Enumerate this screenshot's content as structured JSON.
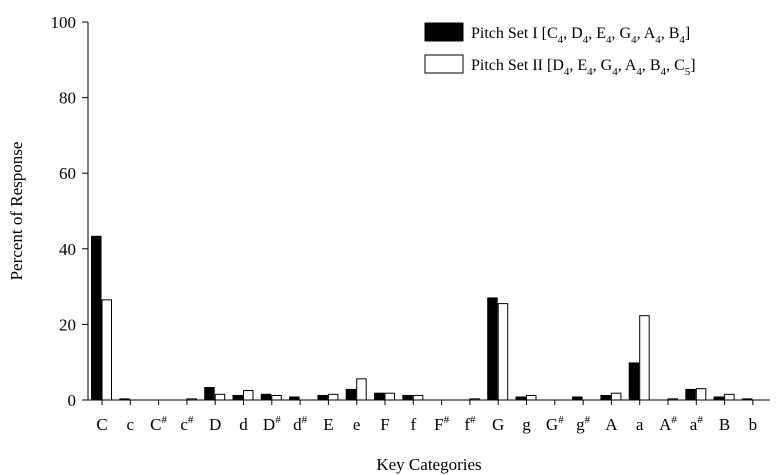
{
  "chart_data": {
    "type": "bar",
    "xlabel": "Key Categories",
    "ylabel": "Percent of Response",
    "ylim": [
      0,
      100
    ],
    "yticks": [
      0,
      20,
      40,
      60,
      80,
      100
    ],
    "grid": false,
    "legend_position": "top-right",
    "categories": [
      {
        "base": "C",
        "sup": ""
      },
      {
        "base": "c",
        "sup": ""
      },
      {
        "base": "C",
        "sup": "#"
      },
      {
        "base": "c",
        "sup": "#"
      },
      {
        "base": "D",
        "sup": ""
      },
      {
        "base": "d",
        "sup": ""
      },
      {
        "base": "D",
        "sup": "#"
      },
      {
        "base": "d",
        "sup": "#"
      },
      {
        "base": "E",
        "sup": ""
      },
      {
        "base": "e",
        "sup": ""
      },
      {
        "base": "F",
        "sup": ""
      },
      {
        "base": "f",
        "sup": ""
      },
      {
        "base": "F",
        "sup": "#"
      },
      {
        "base": "f",
        "sup": "#"
      },
      {
        "base": "G",
        "sup": ""
      },
      {
        "base": "g",
        "sup": ""
      },
      {
        "base": "G",
        "sup": "#"
      },
      {
        "base": "g",
        "sup": "#"
      },
      {
        "base": "A",
        "sup": ""
      },
      {
        "base": "a",
        "sup": ""
      },
      {
        "base": "A",
        "sup": "#"
      },
      {
        "base": "a",
        "sup": "#"
      },
      {
        "base": "B",
        "sup": ""
      },
      {
        "base": "b",
        "sup": ""
      }
    ],
    "series": [
      {
        "name": "Pitch Set I [C4, D4, E4, G4, A4, B4]",
        "name_parts": [
          {
            "t": "Pitch Set I [C"
          },
          {
            "t": "4",
            "sub": true
          },
          {
            "t": ", D"
          },
          {
            "t": "4",
            "sub": true
          },
          {
            "t": ", E"
          },
          {
            "t": "4",
            "sub": true
          },
          {
            "t": ", G"
          },
          {
            "t": "4",
            "sub": true
          },
          {
            "t": ", A"
          },
          {
            "t": "4",
            "sub": true
          },
          {
            "t": ", B"
          },
          {
            "t": "4",
            "sub": true
          },
          {
            "t": "]"
          }
        ],
        "fill": "#000000",
        "values": [
          43.3,
          0.3,
          0,
          0,
          3.3,
          1.2,
          1.5,
          0.8,
          1.2,
          2.8,
          1.8,
          1.2,
          0,
          0,
          27.0,
          0.8,
          0,
          0.8,
          1.2,
          9.8,
          0,
          2.8,
          0.8,
          0.3
        ]
      },
      {
        "name": "Pitch Set II [D4, E4, G4, A4, B4, C5]",
        "name_parts": [
          {
            "t": "Pitch Set II [D"
          },
          {
            "t": "4",
            "sub": true
          },
          {
            "t": ", E"
          },
          {
            "t": "4",
            "sub": true
          },
          {
            "t": ", G"
          },
          {
            "t": "4",
            "sub": true
          },
          {
            "t": ", A"
          },
          {
            "t": "4",
            "sub": true
          },
          {
            "t": ", B"
          },
          {
            "t": "4",
            "sub": true
          },
          {
            "t": ", C"
          },
          {
            "t": "5",
            "sub": true
          },
          {
            "t": "]"
          }
        ],
        "fill": "#ffffff",
        "values": [
          26.5,
          0,
          0,
          0.3,
          1.5,
          2.5,
          1.2,
          0,
          1.5,
          5.6,
          1.8,
          1.2,
          0,
          0.3,
          25.5,
          1.2,
          0,
          0,
          1.8,
          22.3,
          0.3,
          3.0,
          1.5,
          0
        ]
      }
    ]
  }
}
